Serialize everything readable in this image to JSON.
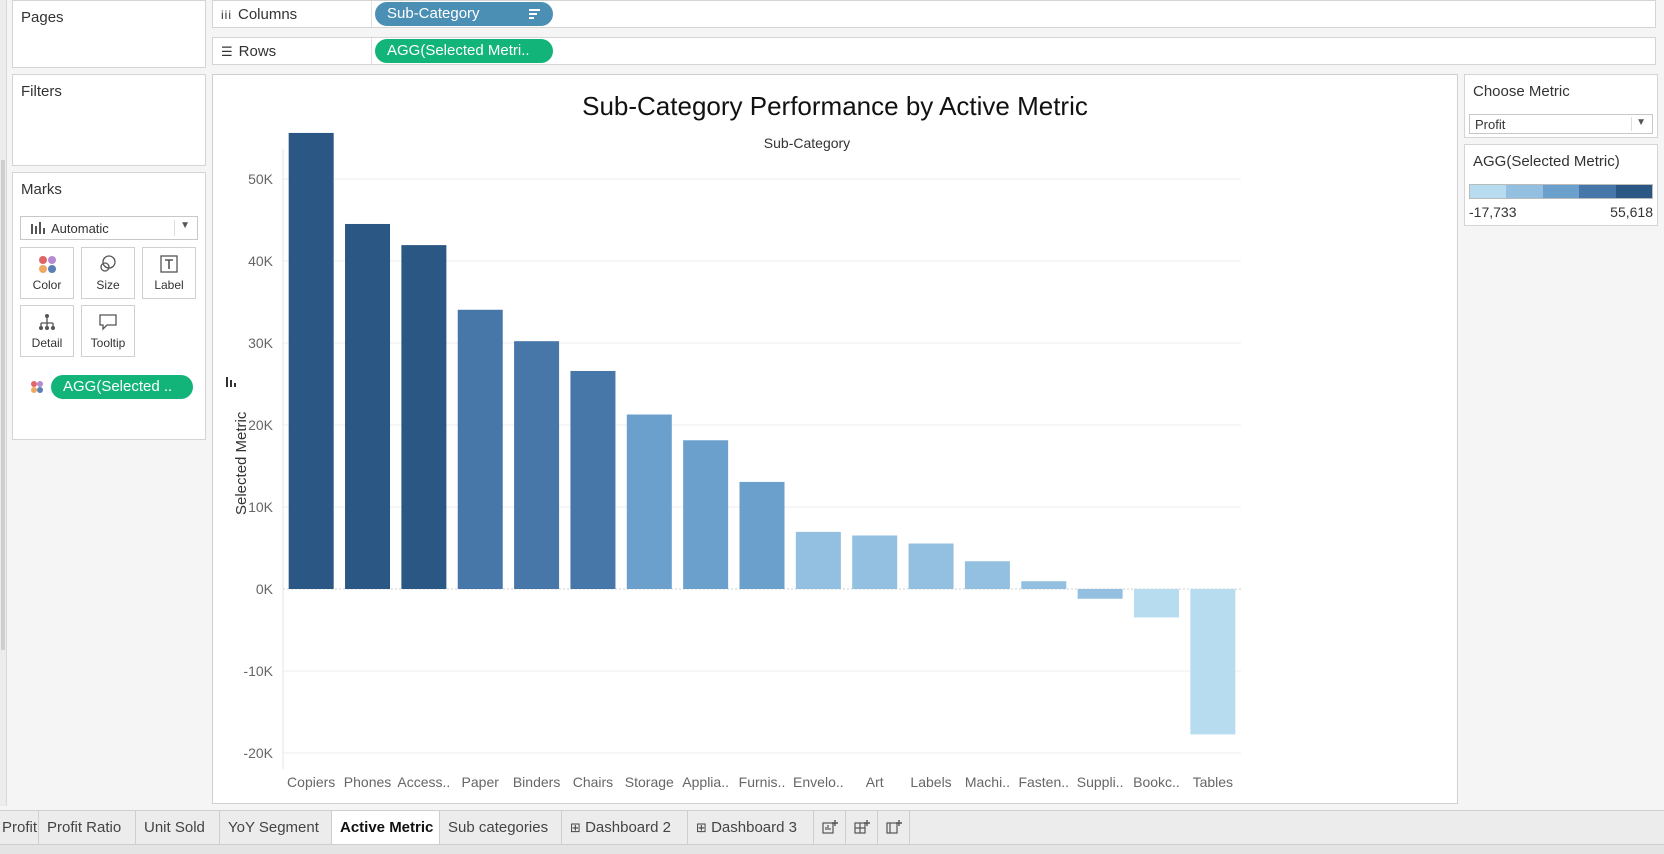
{
  "shelves": {
    "pages_label": "Pages",
    "columns_label": "Columns",
    "columns_pill": "Sub-Category",
    "rows_label": "Rows",
    "rows_pill": "AGG(Selected Metri.."
  },
  "filters_label": "Filters",
  "marks": {
    "title": "Marks",
    "type": "Automatic",
    "buttons": [
      "Color",
      "Size",
      "Label",
      "Detail",
      "Tooltip"
    ],
    "field_pill": "AGG(Selected .."
  },
  "parameter": {
    "title": "Choose Metric",
    "selected": "Profit"
  },
  "legend": {
    "title": "AGG(Selected Metric)",
    "min_label": "-17,733",
    "max_label": "55,618",
    "colors": [
      "#b8dcef",
      "#93c0e0",
      "#6b9fcc",
      "#4677a8",
      "#2a5783"
    ]
  },
  "chart_data": {
    "type": "bar",
    "title": "Sub-Category Performance by Active Metric",
    "column_header": "Sub-Category",
    "ylabel": "Selected Metric",
    "ylim": [
      -20000,
      60000
    ],
    "yticks": [
      50000,
      40000,
      30000,
      20000,
      10000,
      0,
      -10000,
      -20000
    ],
    "ytick_labels": [
      "50K",
      "40K",
      "30K",
      "20K",
      "10K",
      "0K",
      "-10K",
      "-20K"
    ],
    "categories": [
      "Copiers",
      "Phones",
      "Access..",
      "Paper",
      "Binders",
      "Chairs",
      "Storage",
      "Applia..",
      "Furnis..",
      "Envelo..",
      "Art",
      "Labels",
      "Machi..",
      "Fasten..",
      "Suppli..",
      "Bookc..",
      "Tables"
    ],
    "values": [
      55618,
      44516,
      41937,
      34054,
      30222,
      26590,
      21279,
      18138,
      13059,
      6964,
      6528,
      5546,
      3385,
      950,
      -1189,
      -3473,
      -17733
    ],
    "colors": [
      "#2a5783",
      "#2a5783",
      "#2a5783",
      "#4677a8",
      "#4677a8",
      "#4677a8",
      "#6b9fcc",
      "#6b9fcc",
      "#6b9fcc",
      "#93c0e0",
      "#93c0e0",
      "#93c0e0",
      "#93c0e0",
      "#93c0e0",
      "#93c0e0",
      "#b8dcef",
      "#b8dcef"
    ]
  },
  "tabs": [
    "Profit",
    "Profit Ratio",
    "Unit Sold",
    "YoY Segment",
    "Active Metric",
    "Sub categories",
    "Dashboard 2",
    "Dashboard 3"
  ],
  "active_tab": "Active Metric"
}
